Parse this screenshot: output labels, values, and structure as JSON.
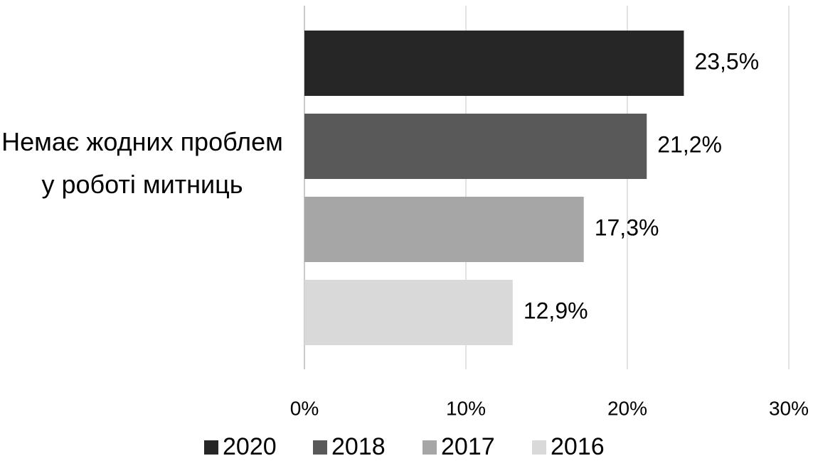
{
  "chart_data": {
    "type": "bar",
    "orientation": "horizontal",
    "categories": [
      "Немає жодних проблем у роботі митниць"
    ],
    "series": [
      {
        "name": "2020",
        "color": "#262626",
        "values": [
          23.5
        ],
        "value_labels": [
          "23,5%"
        ]
      },
      {
        "name": "2018",
        "color": "#595959",
        "values": [
          21.2
        ],
        "value_labels": [
          "21,2%"
        ]
      },
      {
        "name": "2017",
        "color": "#a6a6a6",
        "values": [
          17.3
        ],
        "value_labels": [
          "17,3%"
        ]
      },
      {
        "name": "2016",
        "color": "#d9d9d9",
        "values": [
          12.9
        ],
        "value_labels": [
          "12,9%"
        ]
      }
    ],
    "xlim": [
      0,
      30
    ],
    "xticks": [
      {
        "value": 0,
        "label": "0%"
      },
      {
        "value": 10,
        "label": "10%"
      },
      {
        "value": 20,
        "label": "20%"
      },
      {
        "value": 30,
        "label": "30%"
      }
    ],
    "grid": true,
    "legend": "bottom"
  }
}
